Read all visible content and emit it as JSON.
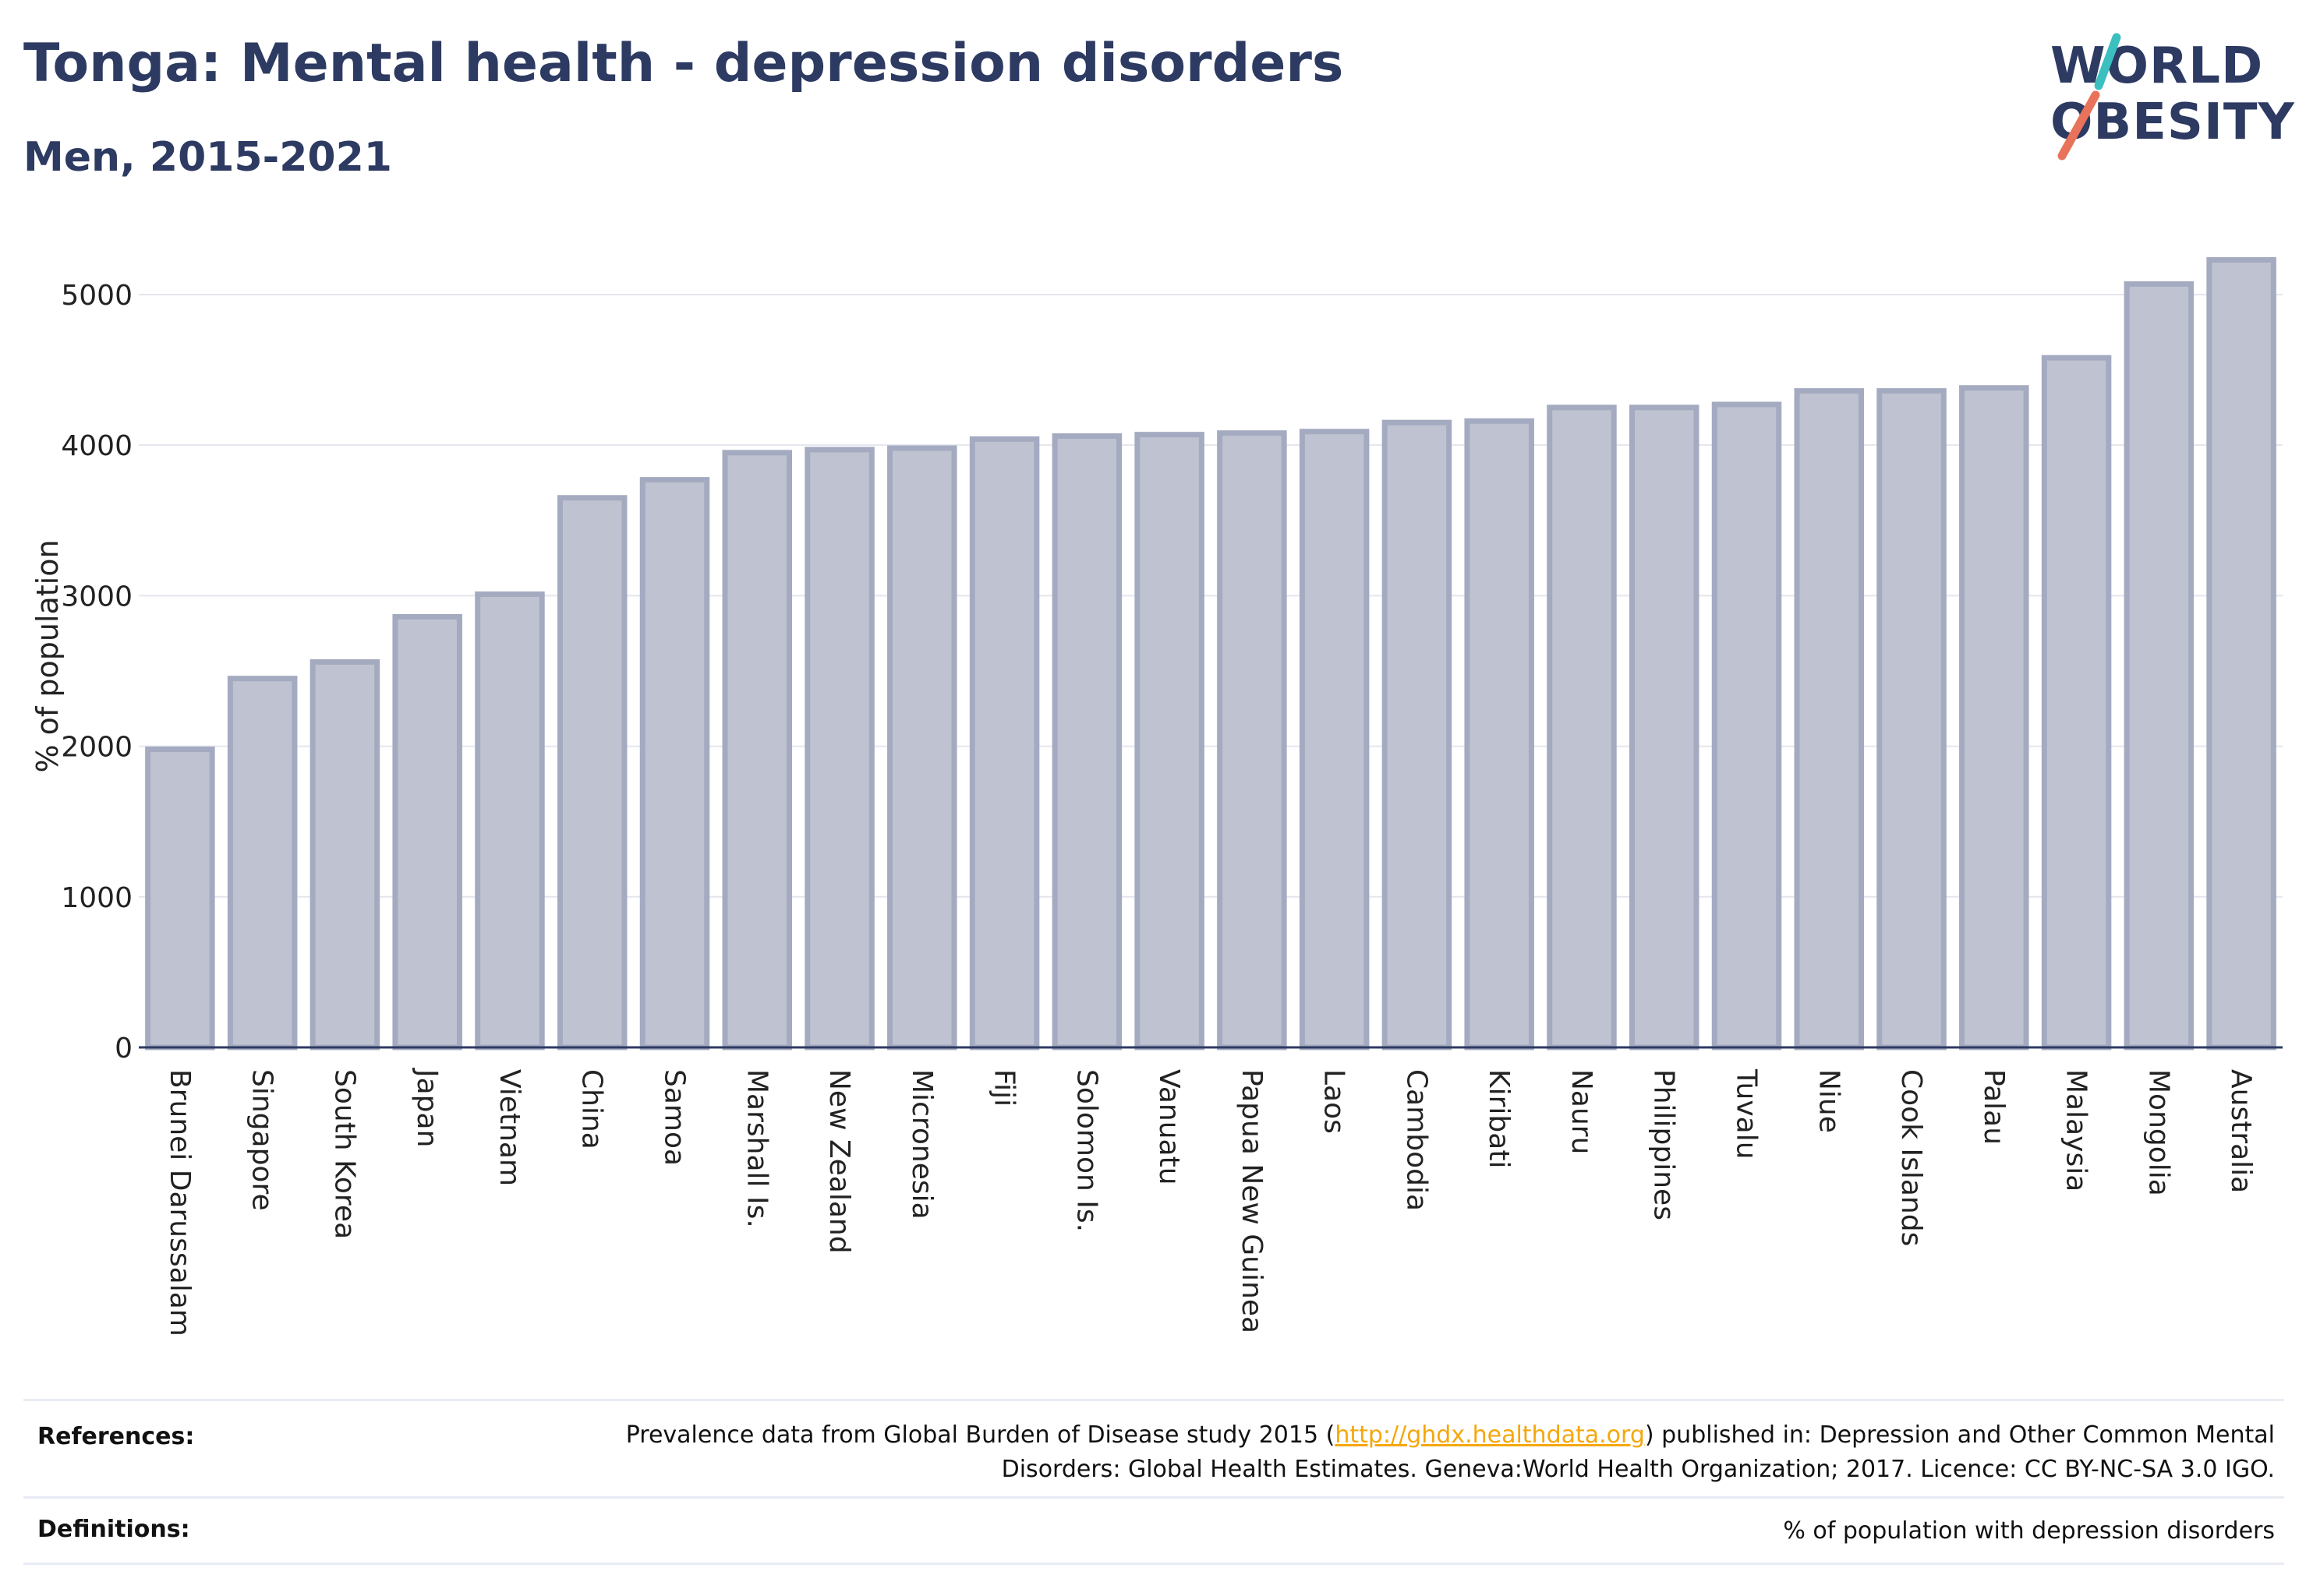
{
  "header": {
    "title": "Tonga: Mental health - depression disorders",
    "subtitle": "Men, 2015-2021"
  },
  "logo": {
    "line1": "WORLD",
    "line2": "OBESITY",
    "colors": {
      "text": "#2d3a62",
      "slash_top": "#3bbfbf",
      "slash_bottom": "#e8735a"
    }
  },
  "chart_data": {
    "type": "bar",
    "categories": [
      "Brunei Darussalam",
      "Singapore",
      "South Korea",
      "Japan",
      "Vietnam",
      "China",
      "Samoa",
      "Marshall Is.",
      "New Zealand",
      "Micronesia",
      "Fiji",
      "Solomon Is.",
      "Vanuatu",
      "Papua New Guinea",
      "Laos",
      "Cambodia",
      "Kiribati",
      "Nauru",
      "Philippines",
      "Tuvalu",
      "Niue",
      "Cook Islands",
      "Palau",
      "Malaysia",
      "Mongolia",
      "Australia"
    ],
    "values": [
      1980,
      2450,
      2560,
      2860,
      3010,
      3650,
      3770,
      3950,
      3970,
      3980,
      4040,
      4060,
      4070,
      4080,
      4090,
      4150,
      4160,
      4250,
      4250,
      4270,
      4360,
      4360,
      4380,
      4580,
      5070,
      5230
    ],
    "ylabel": "% of population",
    "xlabel": "",
    "ylim": [
      0,
      5300
    ],
    "yticks": [
      0,
      1000,
      2000,
      3000,
      4000,
      5000
    ],
    "grid": true,
    "legend": "none",
    "colors": {
      "bar_fill": "#bfc3d1",
      "bar_stroke": "#a4aac0",
      "axis": "#2d3a62",
      "grid": "#e4e6ee",
      "tick_text": "#222222"
    }
  },
  "footer": {
    "references_label": "References:",
    "references_before": "Prevalence data from Global Burden of Disease study 2015 (",
    "references_link": "http://ghdx.healthdata.org",
    "references_after": ") published in: Depression and Other Common Mental Disorders: Global Health Estimates. Geneva:World Health Organization; 2017. Licence: CC BY-NC-SA 3.0 IGO.",
    "definitions_label": "Definitions:",
    "definitions_text": "% of population with depression disorders"
  }
}
